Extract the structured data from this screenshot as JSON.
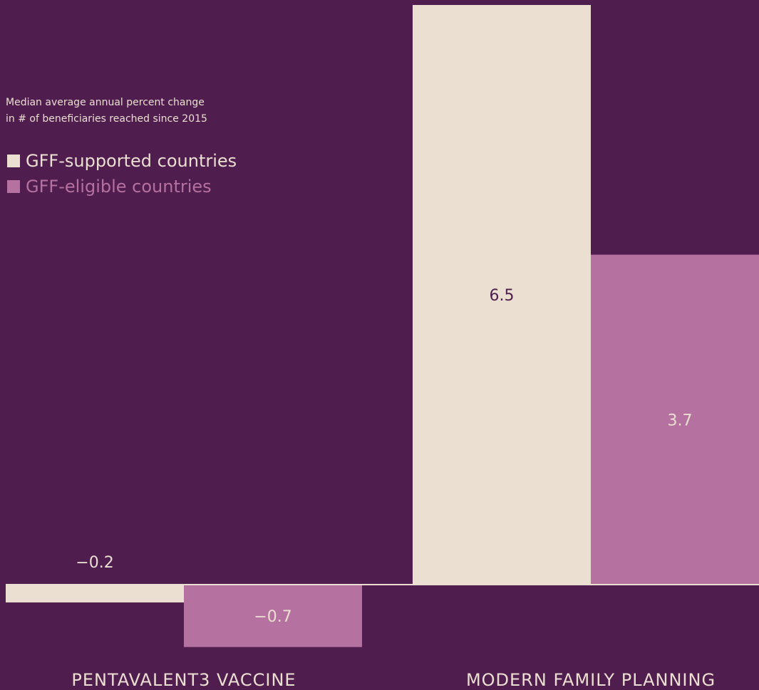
{
  "chart_data": {
    "type": "bar",
    "subtitle_lines": [
      "Median average annual percent change",
      "in # of beneficiaries reached since 2015"
    ],
    "categories": [
      "PENTAVALENT3 VACCINE",
      "MODERN FAMILY PLANNING"
    ],
    "series": [
      {
        "name": "GFF-supported countries",
        "values": [
          -0.2,
          6.5
        ],
        "labels": [
          "−0.2",
          "6.5"
        ],
        "color": "#eadfd0"
      },
      {
        "name": "GFF-eligible countries",
        "values": [
          -0.7,
          3.7
        ],
        "labels": [
          "−0.7",
          "3.7"
        ],
        "color": "#b5719f"
      }
    ],
    "ylim": [
      -1.0,
      6.5
    ],
    "grid": false,
    "legend_position": "top-left",
    "colors": {
      "background": "#501d4f",
      "text_light": "#eadfd0",
      "text_dark": "#501d4f"
    }
  }
}
